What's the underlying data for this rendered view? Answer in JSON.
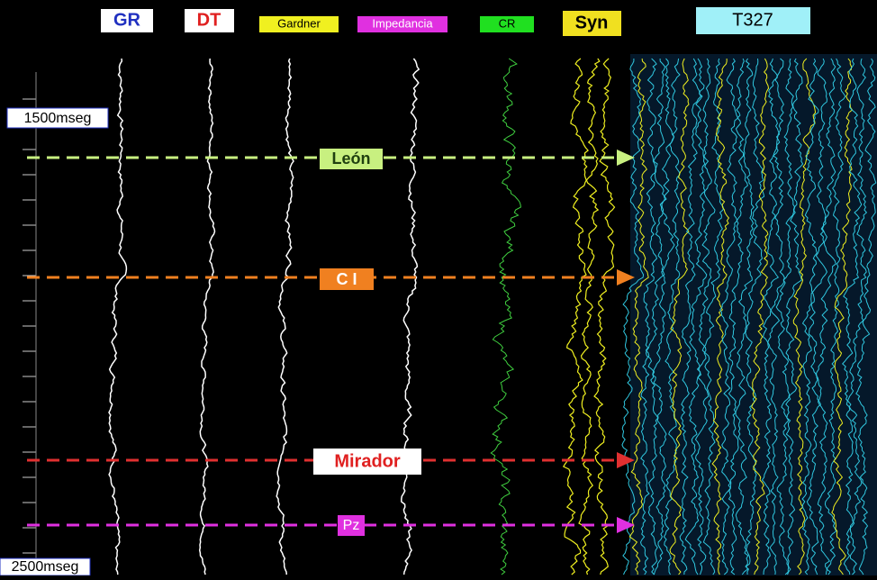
{
  "tracks": [
    {
      "label": "GR"
    },
    {
      "label": "DT"
    },
    {
      "label": "Gardner"
    },
    {
      "label": "Impedancia"
    },
    {
      "label": "CR"
    },
    {
      "label": "Syn"
    },
    {
      "label": "T327"
    }
  ],
  "horizons": [
    {
      "label": "León"
    },
    {
      "label": "C I"
    },
    {
      "label": "Mirador"
    },
    {
      "label": "Pz"
    }
  ],
  "time_labels": {
    "top": "1500mseg",
    "bottom": "2500mseg"
  }
}
